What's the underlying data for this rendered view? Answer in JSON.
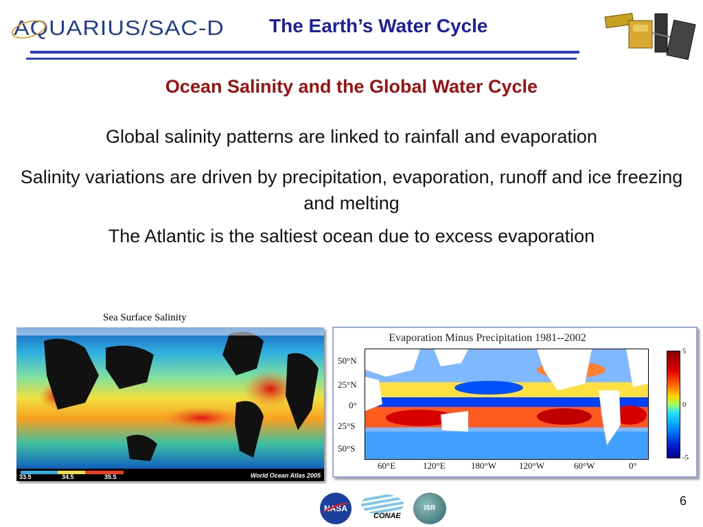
{
  "header": {
    "logo_text": "AQUARIUS/SAC-D",
    "title": "The Earth’s Water Cycle"
  },
  "subtitle": "Ocean Salinity and the Global Water Cycle",
  "bullets": [
    "Global salinity patterns are linked to rainfall and evaporation",
    "Salinity variations are driven by precipitation, evaporation, runoff and ice freezing and melting",
    "The Atlantic is the saltiest ocean due to excess evaporation"
  ],
  "salinity_map": {
    "caption": "Sea Surface Salinity",
    "legend": [
      "33.5",
      "34.5",
      "35.5"
    ],
    "source": "World Ocean Atlas 2005"
  },
  "emp_map": {
    "title": "Evaporation Minus Precipitation 1981--2002",
    "lat_labels": [
      "50°N",
      "25°N",
      "0°",
      "25°S",
      "50°S"
    ],
    "lon_labels": [
      "60°E",
      "120°E",
      "180°W",
      "120°W",
      "60°W",
      "0°"
    ],
    "colorbar_ticks": [
      "5",
      "0",
      "-5"
    ]
  },
  "footer": {
    "logos": [
      "NASA",
      "CONAE",
      "ISR"
    ],
    "page_number": "6"
  }
}
